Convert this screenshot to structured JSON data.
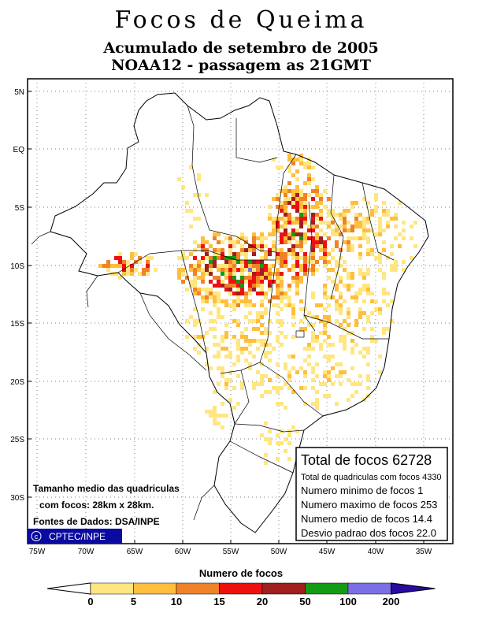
{
  "title": "Focos de Queima",
  "subtitle1": "Acumulado de setembro de 2005",
  "subtitle2": "NOAA12 - passagem as 21GMT",
  "lat_labels": [
    "5N",
    "EQ",
    "5S",
    "10S",
    "15S",
    "20S",
    "25S",
    "30S"
  ],
  "lon_labels": [
    "75W",
    "70W",
    "65W",
    "60W",
    "55W",
    "50W",
    "45W",
    "40W",
    "35W"
  ],
  "stats": {
    "total": "Total de focos 62728",
    "cells": "Total de quadriculas com focos 4330",
    "min": "Numero minimo de focos 1",
    "max": "Numero maximo de focos 253",
    "mean": "Numero medio de focos 14.4",
    "std": "Desvio padrao dos focos 22.0"
  },
  "notes": {
    "grid_size_1": "Tamanho medio das quadriculas",
    "grid_size_2": "com focos: 28km x 28km.",
    "source": "Fontes de Dados: DSA/INPE"
  },
  "credit": "CPTEC/INPE",
  "legend": {
    "title": "Numero de focos",
    "ticks": [
      "0",
      "5",
      "10",
      "15",
      "20",
      "50",
      "100",
      "200"
    ],
    "colors": [
      "#ffe680",
      "#ffbe3c",
      "#f08228",
      "#ee1010",
      "#a01e1e",
      "#139c13",
      "#7a6fe6",
      "#2a0aa0"
    ]
  }
}
